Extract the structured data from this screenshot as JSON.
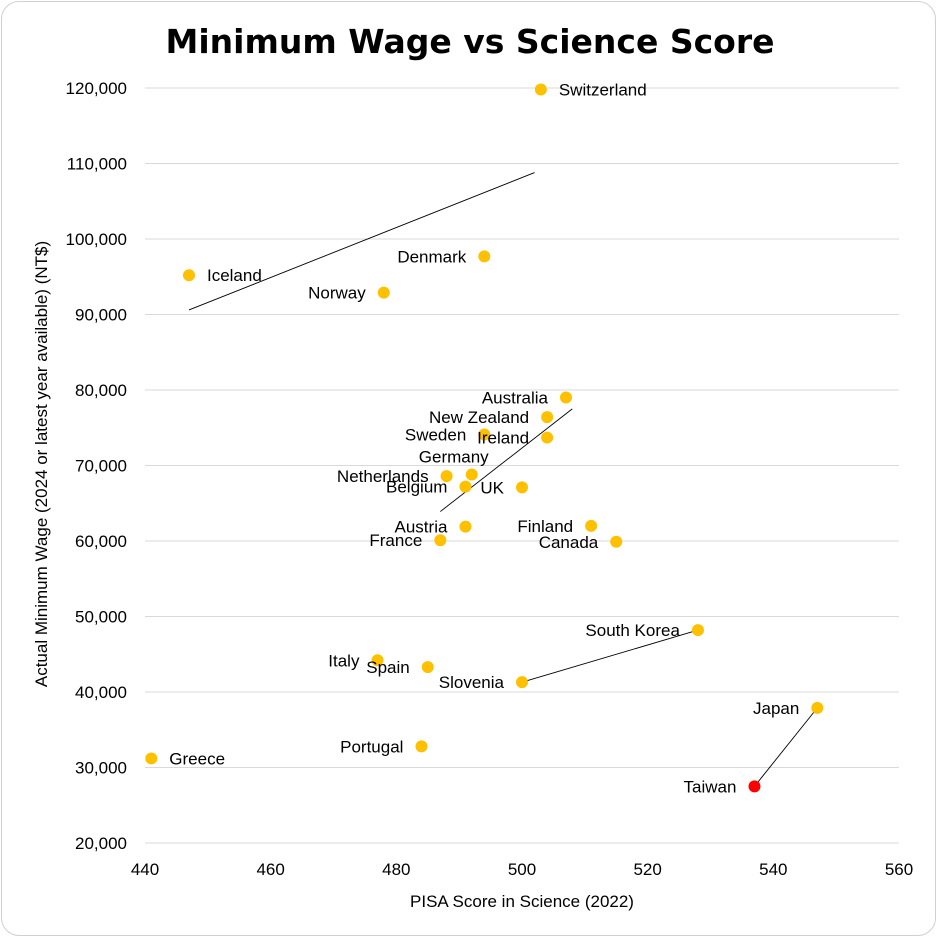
{
  "chart_data": {
    "type": "scatter",
    "title": "Minimum Wage vs Science Score",
    "xlabel": "PISA Score in Science (2022)",
    "ylabel": "Actual Minimum Wage (2024 or latest year available) (NT$)",
    "xlim": [
      440,
      560
    ],
    "ylim": [
      20000,
      120000
    ],
    "x_ticks": [
      440,
      460,
      480,
      500,
      520,
      540,
      560
    ],
    "y_ticks": [
      20000,
      30000,
      40000,
      50000,
      60000,
      70000,
      80000,
      90000,
      100000,
      110000,
      120000
    ],
    "x_tick_labels": [
      "440",
      "460",
      "480",
      "500",
      "520",
      "540",
      "560"
    ],
    "y_tick_labels": [
      "20,000",
      "30,000",
      "40,000",
      "50,000",
      "60,000",
      "70,000",
      "80,000",
      "90,000",
      "100,000",
      "110,000",
      "120,000"
    ],
    "grid": "horizontal",
    "colors": {
      "point": "#FFC000",
      "highlight": "#FF0000",
      "highlight_label": "#FF0000",
      "grid": "#d9d9d9",
      "trend": "#000000"
    },
    "points": [
      {
        "label": "Switzerland",
        "x": 503,
        "y": 119800,
        "label_pos": "right"
      },
      {
        "label": "Iceland",
        "x": 447,
        "y": 95200,
        "label_pos": "right"
      },
      {
        "label": "Denmark",
        "x": 494,
        "y": 97700,
        "label_pos": "left"
      },
      {
        "label": "Norway",
        "x": 478,
        "y": 92900,
        "label_pos": "left"
      },
      {
        "label": "Australia",
        "x": 507,
        "y": 79000,
        "label_pos": "left"
      },
      {
        "label": "New Zealand",
        "x": 504,
        "y": 76400,
        "label_pos": "left"
      },
      {
        "label": "Sweden",
        "x": 494,
        "y": 74100,
        "label_pos": "left"
      },
      {
        "label": "Ireland",
        "x": 504,
        "y": 73700,
        "label_pos": "left"
      },
      {
        "label": "Germany",
        "x": 492,
        "y": 68800,
        "label_pos": "above"
      },
      {
        "label": "Netherlands",
        "x": 488,
        "y": 68600,
        "label_pos": "left"
      },
      {
        "label": "Belgium",
        "x": 491,
        "y": 67200,
        "label_pos": "left"
      },
      {
        "label": "UK",
        "x": 500,
        "y": 67100,
        "label_pos": "left"
      },
      {
        "label": "Austria",
        "x": 491,
        "y": 61900,
        "label_pos": "left"
      },
      {
        "label": "Finland",
        "x": 511,
        "y": 62000,
        "label_pos": "left"
      },
      {
        "label": "France",
        "x": 487,
        "y": 60100,
        "label_pos": "left"
      },
      {
        "label": "Canada",
        "x": 515,
        "y": 59900,
        "label_pos": "left"
      },
      {
        "label": "South Korea",
        "x": 528,
        "y": 48200,
        "label_pos": "left"
      },
      {
        "label": "Italy",
        "x": 477,
        "y": 44200,
        "label_pos": "left"
      },
      {
        "label": "Spain",
        "x": 485,
        "y": 43300,
        "label_pos": "left"
      },
      {
        "label": "Slovenia",
        "x": 500,
        "y": 41300,
        "label_pos": "left"
      },
      {
        "label": "Japan",
        "x": 547,
        "y": 37900,
        "label_pos": "left"
      },
      {
        "label": "Portugal",
        "x": 484,
        "y": 32800,
        "label_pos": "left"
      },
      {
        "label": "Greece",
        "x": 441,
        "y": 31200,
        "label_pos": "right"
      },
      {
        "label": "Taiwan",
        "x": 537,
        "y": 27500,
        "label_pos": "left",
        "highlight": true
      }
    ],
    "trend_lines": [
      {
        "x1": 447,
        "y1": 90600,
        "x2": 502,
        "y2": 108800
      },
      {
        "x1": 487,
        "y1": 63900,
        "x2": 508,
        "y2": 77500
      },
      {
        "x1": 500,
        "y1": 41300,
        "x2": 528,
        "y2": 48200
      },
      {
        "x1": 537,
        "y1": 27500,
        "x2": 547,
        "y2": 37900
      }
    ]
  }
}
